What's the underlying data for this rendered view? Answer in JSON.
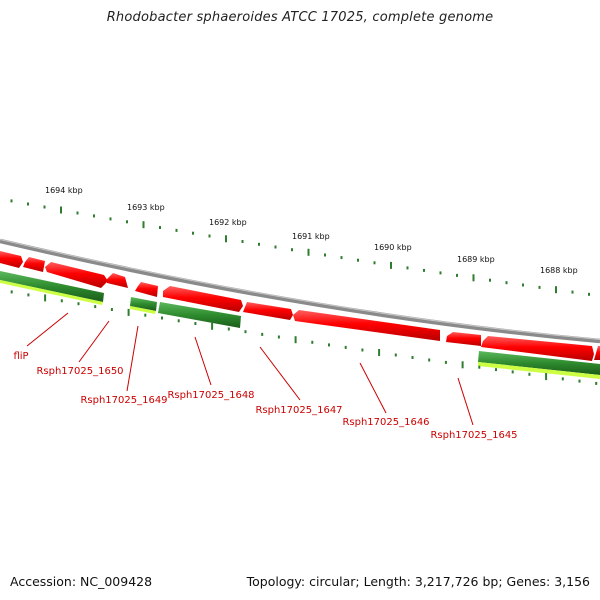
{
  "title": "Rhodobacter sphaeroides ATCC 17025, complete genome",
  "footer": {
    "accession": "Accession: NC_009428",
    "summary": "Topology: circular; Length: 3,217,726 bp; Genes: 3,156"
  },
  "kbp_labels": [
    "1694 kbp",
    "1693 kbp",
    "1692 kbp",
    "1691 kbp",
    "1690 kbp",
    "1689 kbp",
    "1688 kbp"
  ],
  "gene_labels": [
    "fliP",
    "Rsph17025_1650",
    "Rsph17025_1649",
    "Rsph17025_1648",
    "Rsph17025_1647",
    "Rsph17025_1646",
    "Rsph17025_1645"
  ],
  "colors": {
    "backbone": "#8a8a8a",
    "forward_gene": "#ff1a1a",
    "reverse_gene": "#2e8b2e",
    "gc_band": "#ccff44",
    "tick": "#2f7d2f",
    "label": "#cc0000"
  }
}
